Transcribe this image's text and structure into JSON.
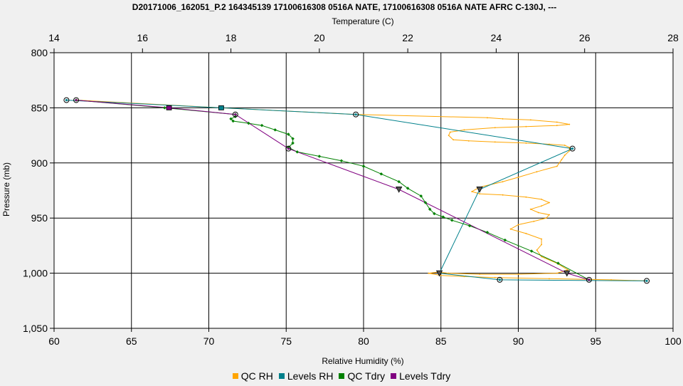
{
  "chart_data": {
    "type": "line",
    "title": "D20171006_162051_P.2 164345139 17100616308 0516A NATE, 17100616308 0516A NATE AFRC C-130J, ---",
    "xlabel": "Relative Humidity (%)",
    "x2label": "Temperature (C)",
    "ylabel": "Pressure (mb)",
    "xlim": [
      60,
      100
    ],
    "x2lim": [
      14,
      28
    ],
    "ylim": [
      800,
      1050
    ],
    "y_inverted": true,
    "grid": true,
    "legend_position": "bottom",
    "xticks": [
      "60",
      "65",
      "70",
      "75",
      "80",
      "85",
      "90",
      "95",
      "100"
    ],
    "x2ticks": [
      "14",
      "16",
      "18",
      "20",
      "22",
      "24",
      "26",
      "28"
    ],
    "yticks": [
      "800",
      "850",
      "900",
      "950",
      "1,000",
      "1,050"
    ],
    "series": [
      {
        "name": "QC RH",
        "color": "#ffa500",
        "axis": "RH",
        "points": [
          [
            61.5,
            843
          ],
          [
            70.8,
            850
          ],
          [
            79.5,
            856
          ],
          [
            88,
            859
          ],
          [
            89,
            860
          ],
          [
            90.8,
            861
          ],
          [
            92.5,
            863
          ],
          [
            93.3,
            865
          ],
          [
            92.5,
            866
          ],
          [
            90.5,
            867
          ],
          [
            88.5,
            868
          ],
          [
            86.5,
            870
          ],
          [
            85.6,
            872
          ],
          [
            85.5,
            875
          ],
          [
            85.8,
            879
          ],
          [
            86.8,
            880
          ],
          [
            88.5,
            881
          ],
          [
            90.5,
            882
          ],
          [
            92,
            883
          ],
          [
            93,
            884
          ],
          [
            93.3,
            886
          ],
          [
            93.3,
            889
          ],
          [
            93,
            893
          ],
          [
            92.8,
            897
          ],
          [
            92.5,
            903
          ],
          [
            91.2,
            908
          ],
          [
            90,
            913
          ],
          [
            89,
            917
          ],
          [
            87.5,
            922
          ],
          [
            87,
            926
          ],
          [
            87.5,
            928
          ],
          [
            89,
            929
          ],
          [
            90.5,
            931
          ],
          [
            91.5,
            933
          ],
          [
            92,
            936
          ],
          [
            91.5,
            939
          ],
          [
            90.8,
            942
          ],
          [
            91.3,
            945
          ],
          [
            92,
            947
          ],
          [
            91.8,
            950
          ],
          [
            91,
            953
          ],
          [
            90,
            956
          ],
          [
            89.5,
            960
          ],
          [
            90.5,
            964
          ],
          [
            91.5,
            969
          ],
          [
            91.5,
            974
          ],
          [
            91.2,
            979
          ],
          [
            91.5,
            985
          ],
          [
            92.5,
            991
          ],
          [
            93.2,
            997
          ],
          [
            92.5,
            1000
          ],
          [
            90,
            1001
          ],
          [
            87.5,
            1001
          ],
          [
            85.5,
            1000
          ],
          [
            84.8,
            999
          ],
          [
            84.2,
            1000
          ],
          [
            85,
            1002
          ],
          [
            86.5,
            1003
          ],
          [
            88.5,
            1004
          ],
          [
            92,
            1005
          ],
          [
            96,
            1006
          ],
          [
            98.3,
            1007
          ]
        ]
      },
      {
        "name": "Levels RH",
        "color": "#00808b",
        "axis": "RH",
        "points": [
          [
            60.8,
            843
          ],
          [
            70.8,
            850
          ],
          [
            79.5,
            856
          ],
          [
            93.5,
            887
          ],
          [
            87.5,
            924
          ],
          [
            84.9,
            1000
          ],
          [
            88.8,
            1006
          ],
          [
            98.3,
            1007
          ]
        ]
      },
      {
        "name": "QC Tdry",
        "color": "#008000",
        "axis": "Temperature",
        "points": [
          [
            14.5,
            843
          ],
          [
            16.5,
            850
          ],
          [
            18.1,
            856
          ],
          [
            18.1,
            858
          ],
          [
            18.0,
            860
          ],
          [
            18.05,
            862
          ],
          [
            18.4,
            864
          ],
          [
            18.7,
            866
          ],
          [
            19.0,
            870
          ],
          [
            19.3,
            874
          ],
          [
            19.4,
            878
          ],
          [
            19.4,
            882
          ],
          [
            19.3,
            886
          ],
          [
            19.5,
            890
          ],
          [
            20.0,
            894
          ],
          [
            20.5,
            898
          ],
          [
            21.0,
            903
          ],
          [
            21.4,
            910
          ],
          [
            21.8,
            917
          ],
          [
            22.0,
            923
          ],
          [
            22.3,
            930
          ],
          [
            22.4,
            936
          ],
          [
            22.5,
            942
          ],
          [
            22.6,
            946
          ],
          [
            22.8,
            949
          ],
          [
            23.0,
            952
          ],
          [
            23.4,
            957
          ],
          [
            23.8,
            963
          ],
          [
            24.2,
            970
          ],
          [
            24.8,
            980
          ],
          [
            25.4,
            991
          ],
          [
            26.1,
            1006
          ]
        ]
      },
      {
        "name": "Levels Tdry",
        "color": "#800080",
        "axis": "Temperature",
        "points": [
          [
            14.5,
            843
          ],
          [
            16.6,
            850
          ],
          [
            18.1,
            856
          ],
          [
            19.3,
            887
          ],
          [
            21.8,
            924
          ],
          [
            25.6,
            1000
          ],
          [
            26.1,
            1006
          ]
        ]
      }
    ],
    "level_markers": [
      {
        "series": "Levels RH",
        "shape": "circle",
        "points": [
          [
            60.8,
            843
          ],
          [
            79.5,
            856
          ],
          [
            93.5,
            887
          ],
          [
            88.8,
            1006
          ],
          [
            98.3,
            1007
          ]
        ]
      },
      {
        "series": "Levels RH",
        "shape": "triangle",
        "points": [
          [
            87.5,
            924
          ],
          [
            84.9,
            1000
          ]
        ]
      },
      {
        "series": "Levels RH",
        "shape": "square",
        "points": [
          [
            70.8,
            850
          ]
        ]
      },
      {
        "series": "Levels Tdry",
        "shape": "circle",
        "points": [
          [
            14.5,
            843
          ],
          [
            18.1,
            856
          ],
          [
            19.3,
            887
          ],
          [
            26.1,
            1006
          ]
        ]
      },
      {
        "series": "Levels Tdry",
        "shape": "triangle",
        "points": [
          [
            21.8,
            924
          ],
          [
            25.6,
            1000
          ]
        ]
      },
      {
        "series": "Levels Tdry",
        "shape": "square",
        "points": [
          [
            16.6,
            850
          ]
        ]
      }
    ]
  }
}
